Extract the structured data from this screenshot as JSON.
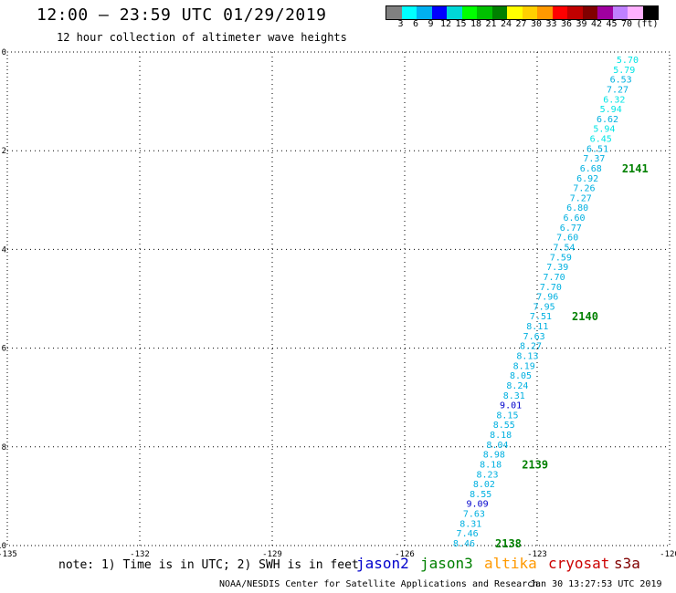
{
  "header": {
    "title": "12:00 — 23:59 UTC 01/29/2019",
    "subtitle": "12 hour collection of altimeter wave heights"
  },
  "legend": {
    "colors": [
      "#808080",
      "#00ffff",
      "#00b0f0",
      "#0000ff",
      "#00d8d8",
      "#00ff00",
      "#00c000",
      "#008000",
      "#ffff00",
      "#ffd000",
      "#ff9900",
      "#ff0000",
      "#c00000",
      "#800000",
      "#a000a0",
      "#c080ff",
      "#ffb0ff",
      "#000000"
    ],
    "labels": [
      "3",
      "6",
      "9",
      "12",
      "15",
      "18",
      "21",
      "24",
      "27",
      "30",
      "33",
      "36",
      "39",
      "42",
      "45",
      "70",
      "(ft)"
    ]
  },
  "map": {
    "lon_ticks": [
      "-135",
      "-132",
      "-129",
      "-126",
      "-123",
      "-120"
    ],
    "lat_ticks": [
      "0",
      "-2",
      "-4",
      "-6",
      "-8",
      "-10"
    ]
  },
  "track": {
    "points": [
      {
        "v": "5.70",
        "c": "#00e5e5"
      },
      {
        "v": "5.79",
        "c": "#00e5e5"
      },
      {
        "v": "6.53",
        "c": "#00b0e0"
      },
      {
        "v": "7.27",
        "c": "#00b0e0"
      },
      {
        "v": "6.32",
        "c": "#00e5e5"
      },
      {
        "v": "5.94",
        "c": "#00e5e5"
      },
      {
        "v": "6.62",
        "c": "#00b0e0"
      },
      {
        "v": "5.94",
        "c": "#00e5e5"
      },
      {
        "v": "6.45",
        "c": "#00e5e5"
      },
      {
        "v": "6.51",
        "c": "#00b0e0"
      },
      {
        "v": "7.37",
        "c": "#00b0e0"
      },
      {
        "v": "6.68",
        "c": "#00b0e0"
      },
      {
        "v": "6.92",
        "c": "#00b0e0"
      },
      {
        "v": "7.26",
        "c": "#00b0e0"
      },
      {
        "v": "7.27",
        "c": "#00b0e0"
      },
      {
        "v": "6.80",
        "c": "#00b0e0"
      },
      {
        "v": "6.60",
        "c": "#00b0e0"
      },
      {
        "v": "6.77",
        "c": "#00b0e0"
      },
      {
        "v": "7.60",
        "c": "#00b0e0"
      },
      {
        "v": "7.54",
        "c": "#00b0e0"
      },
      {
        "v": "7.59",
        "c": "#00b0e0"
      },
      {
        "v": "7.39",
        "c": "#00b0e0"
      },
      {
        "v": "7.70",
        "c": "#00b0e0"
      },
      {
        "v": "7.70",
        "c": "#00b0e0"
      },
      {
        "v": "7.96",
        "c": "#00b0e0"
      },
      {
        "v": "7.95",
        "c": "#00b0e0"
      },
      {
        "v": "7.51",
        "c": "#00b0e0"
      },
      {
        "v": "8.11",
        "c": "#00b0e0"
      },
      {
        "v": "7.63",
        "c": "#00b0e0"
      },
      {
        "v": "8.27",
        "c": "#00b0e0"
      },
      {
        "v": "8.13",
        "c": "#00b0e0"
      },
      {
        "v": "8.19",
        "c": "#00b0e0"
      },
      {
        "v": "8.05",
        "c": "#00b0e0"
      },
      {
        "v": "8.24",
        "c": "#00b0e0"
      },
      {
        "v": "8.31",
        "c": "#00b0e0"
      },
      {
        "v": "9.01",
        "c": "#0000cc"
      },
      {
        "v": "8.15",
        "c": "#00b0e0"
      },
      {
        "v": "8.55",
        "c": "#00b0e0"
      },
      {
        "v": "8.18",
        "c": "#00b0e0"
      },
      {
        "v": "8.04",
        "c": "#00b0e0"
      },
      {
        "v": "8.98",
        "c": "#00b0e0"
      },
      {
        "v": "8.18",
        "c": "#00b0e0"
      },
      {
        "v": "8.23",
        "c": "#00b0e0"
      },
      {
        "v": "8.02",
        "c": "#00b0e0"
      },
      {
        "v": "8.55",
        "c": "#00b0e0"
      },
      {
        "v": "9.09",
        "c": "#0000cc"
      },
      {
        "v": "7.63",
        "c": "#00b0e0"
      },
      {
        "v": "8.31",
        "c": "#00b0e0"
      },
      {
        "v": "7.46",
        "c": "#00b0e0"
      },
      {
        "v": "8.46",
        "c": "#00b0e0"
      }
    ],
    "time_labels": [
      {
        "t": "2141",
        "after_index": 11
      },
      {
        "t": "2140",
        "after_index": 26
      },
      {
        "t": "2139",
        "after_index": 41
      },
      {
        "t": "2138",
        "after_index": 49
      }
    ]
  },
  "footer": {
    "note": "note: 1) Time is in UTC; 2) SWH is in feet",
    "satellites": [
      {
        "name": "jason2",
        "color": "#0000cc"
      },
      {
        "name": "jason3",
        "color": "#008000"
      },
      {
        "name": "altika",
        "color": "#ff9900"
      },
      {
        "name": "cryosat",
        "color": "#cc0000"
      },
      {
        "name": "s3a",
        "color": "#800000"
      }
    ],
    "credit": "NOAA/NESDIS Center for Satellite Applications and Research",
    "timestamp": "Jan 30 13:27:53 UTC 2019"
  }
}
